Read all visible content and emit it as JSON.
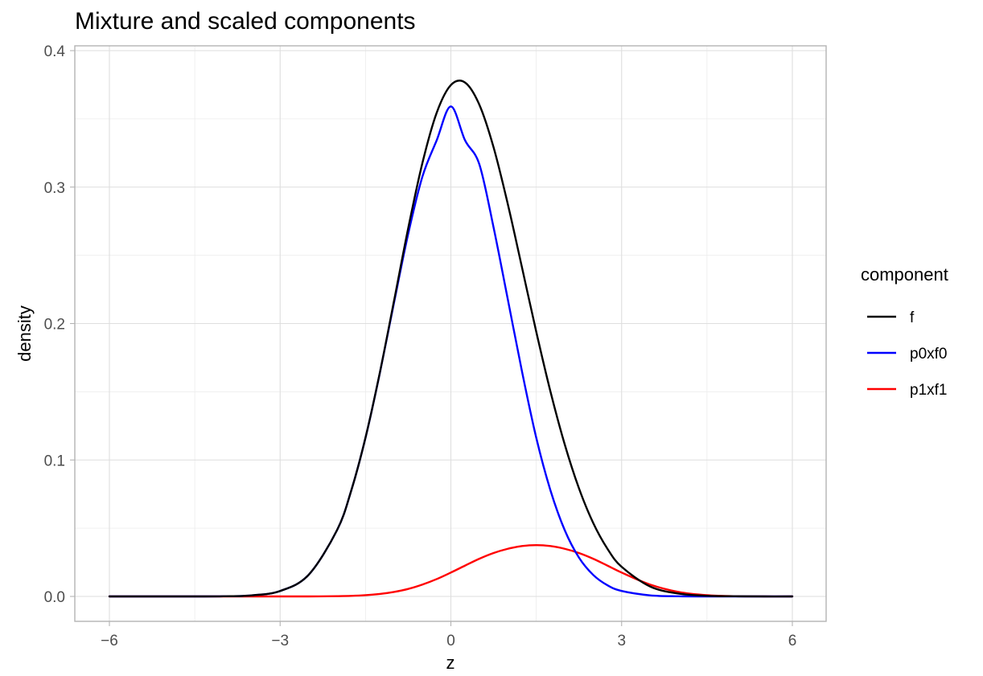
{
  "chart_data": {
    "type": "line",
    "title": "Mixture and scaled components",
    "xlabel": "z",
    "ylabel": "density",
    "xlim": [
      -6,
      6
    ],
    "ylim": [
      0,
      0.4
    ],
    "xticks": [
      -6,
      -3,
      0,
      3,
      6
    ],
    "xtick_labels": [
      "−6",
      "−3",
      "0",
      "3",
      "6"
    ],
    "yticks": [
      0.0,
      0.1,
      0.2,
      0.3,
      0.4
    ],
    "ytick_labels": [
      "0.0",
      "0.1",
      "0.2",
      "0.3",
      "0.4"
    ],
    "grid": true,
    "legend": {
      "title": "component",
      "placement": "right"
    },
    "x": [
      -6,
      -5.5,
      -5,
      -4.5,
      -4,
      -3.5,
      -3,
      -2.5,
      -2,
      -1.75,
      -1.5,
      -1.25,
      -1,
      -0.75,
      -0.5,
      -0.25,
      0,
      0.25,
      0.5,
      0.75,
      1,
      1.25,
      1.5,
      1.75,
      2,
      2.25,
      2.5,
      2.75,
      3,
      3.5,
      4,
      4.5,
      5,
      5.5,
      6
    ],
    "series": [
      {
        "name": "f",
        "color": "#000000",
        "values": [
          0,
          0,
          0,
          0,
          0.0001,
          0.0008,
          0.004,
          0.0158,
          0.0486,
          0.0777,
          0.1164,
          0.1636,
          0.2164,
          0.2698,
          0.3177,
          0.3544,
          0.3748,
          0.3766,
          0.3604,
          0.3292,
          0.2876,
          0.241,
          0.194,
          0.1501,
          0.1115,
          0.0793,
          0.0539,
          0.035,
          0.0217,
          0.0073,
          0.0021,
          0.0005,
          0.0001,
          0,
          0
        ]
      },
      {
        "name": "p0xf0",
        "color": "#0000ff",
        "values": [
          0,
          0,
          0,
          0,
          0.0001,
          0.0008,
          0.004,
          0.0158,
          0.0486,
          0.0777,
          0.1163,
          0.1633,
          0.2151,
          0.2657,
          0.3077,
          0.3342,
          0.3591,
          0.3342,
          0.3167,
          0.2705,
          0.2178,
          0.1648,
          0.1163,
          0.0777,
          0.0486,
          0.0285,
          0.0158,
          0.0082,
          0.004,
          0.0008,
          0.0001,
          0,
          0,
          0,
          0
        ]
      },
      {
        "name": "p1xf1",
        "color": "#ff0000",
        "values": [
          0,
          0,
          0,
          0,
          0,
          0,
          0,
          0,
          0.0002,
          0.0004,
          0.0009,
          0.0018,
          0.0033,
          0.0055,
          0.0087,
          0.0127,
          0.0175,
          0.0226,
          0.0276,
          0.0318,
          0.0349,
          0.0369,
          0.0376,
          0.0369,
          0.0349,
          0.0318,
          0.0276,
          0.0226,
          0.0175,
          0.0087,
          0.0033,
          0.0009,
          0.0002,
          0,
          0
        ]
      }
    ]
  }
}
